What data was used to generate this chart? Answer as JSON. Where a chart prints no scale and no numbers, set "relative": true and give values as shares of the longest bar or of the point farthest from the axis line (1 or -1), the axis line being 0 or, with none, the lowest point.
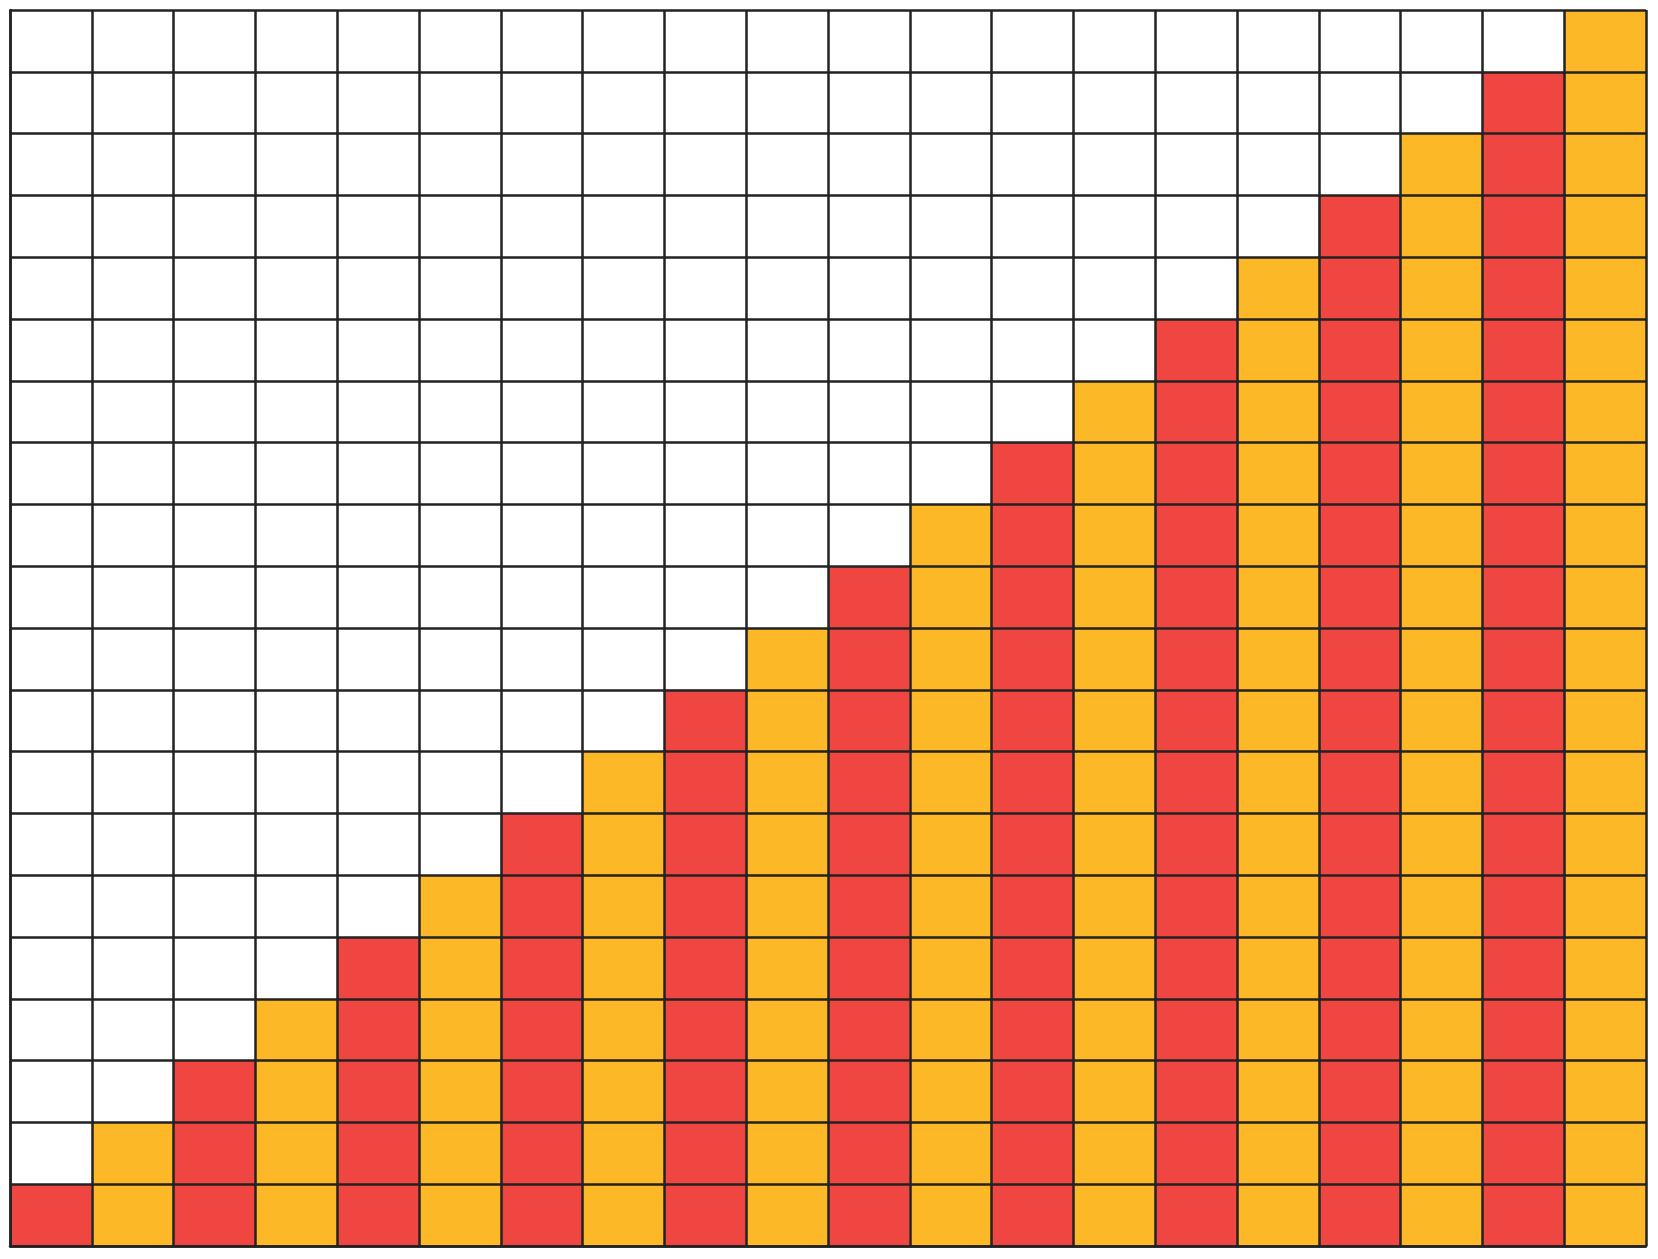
{
  "chart_data": {
    "type": "bar",
    "relative": true,
    "grid": true,
    "categories": [
      null,
      null,
      null,
      null,
      null,
      null,
      null,
      null,
      null,
      null,
      null,
      null,
      null,
      null,
      null,
      null,
      null,
      null,
      null,
      null
    ],
    "values": [
      0.05,
      0.1,
      0.15,
      0.2,
      0.25,
      0.3,
      0.35,
      0.4,
      0.45,
      0.5,
      0.55,
      0.6,
      0.65,
      0.7,
      0.75,
      0.8,
      0.85,
      0.9,
      0.95,
      1
    ],
    "colors": [
      "#ef4642",
      "#fcb827",
      "#ef4642",
      "#fcb827",
      "#ef4642",
      "#fcb827",
      "#ef4642",
      "#fcb827",
      "#ef4642",
      "#fcb827",
      "#ef4642",
      "#fcb827",
      "#ef4642",
      "#fcb827",
      "#ef4642",
      "#fcb827",
      "#ef4642",
      "#fcb827",
      "#ef4642",
      "#fcb827"
    ]
  }
}
